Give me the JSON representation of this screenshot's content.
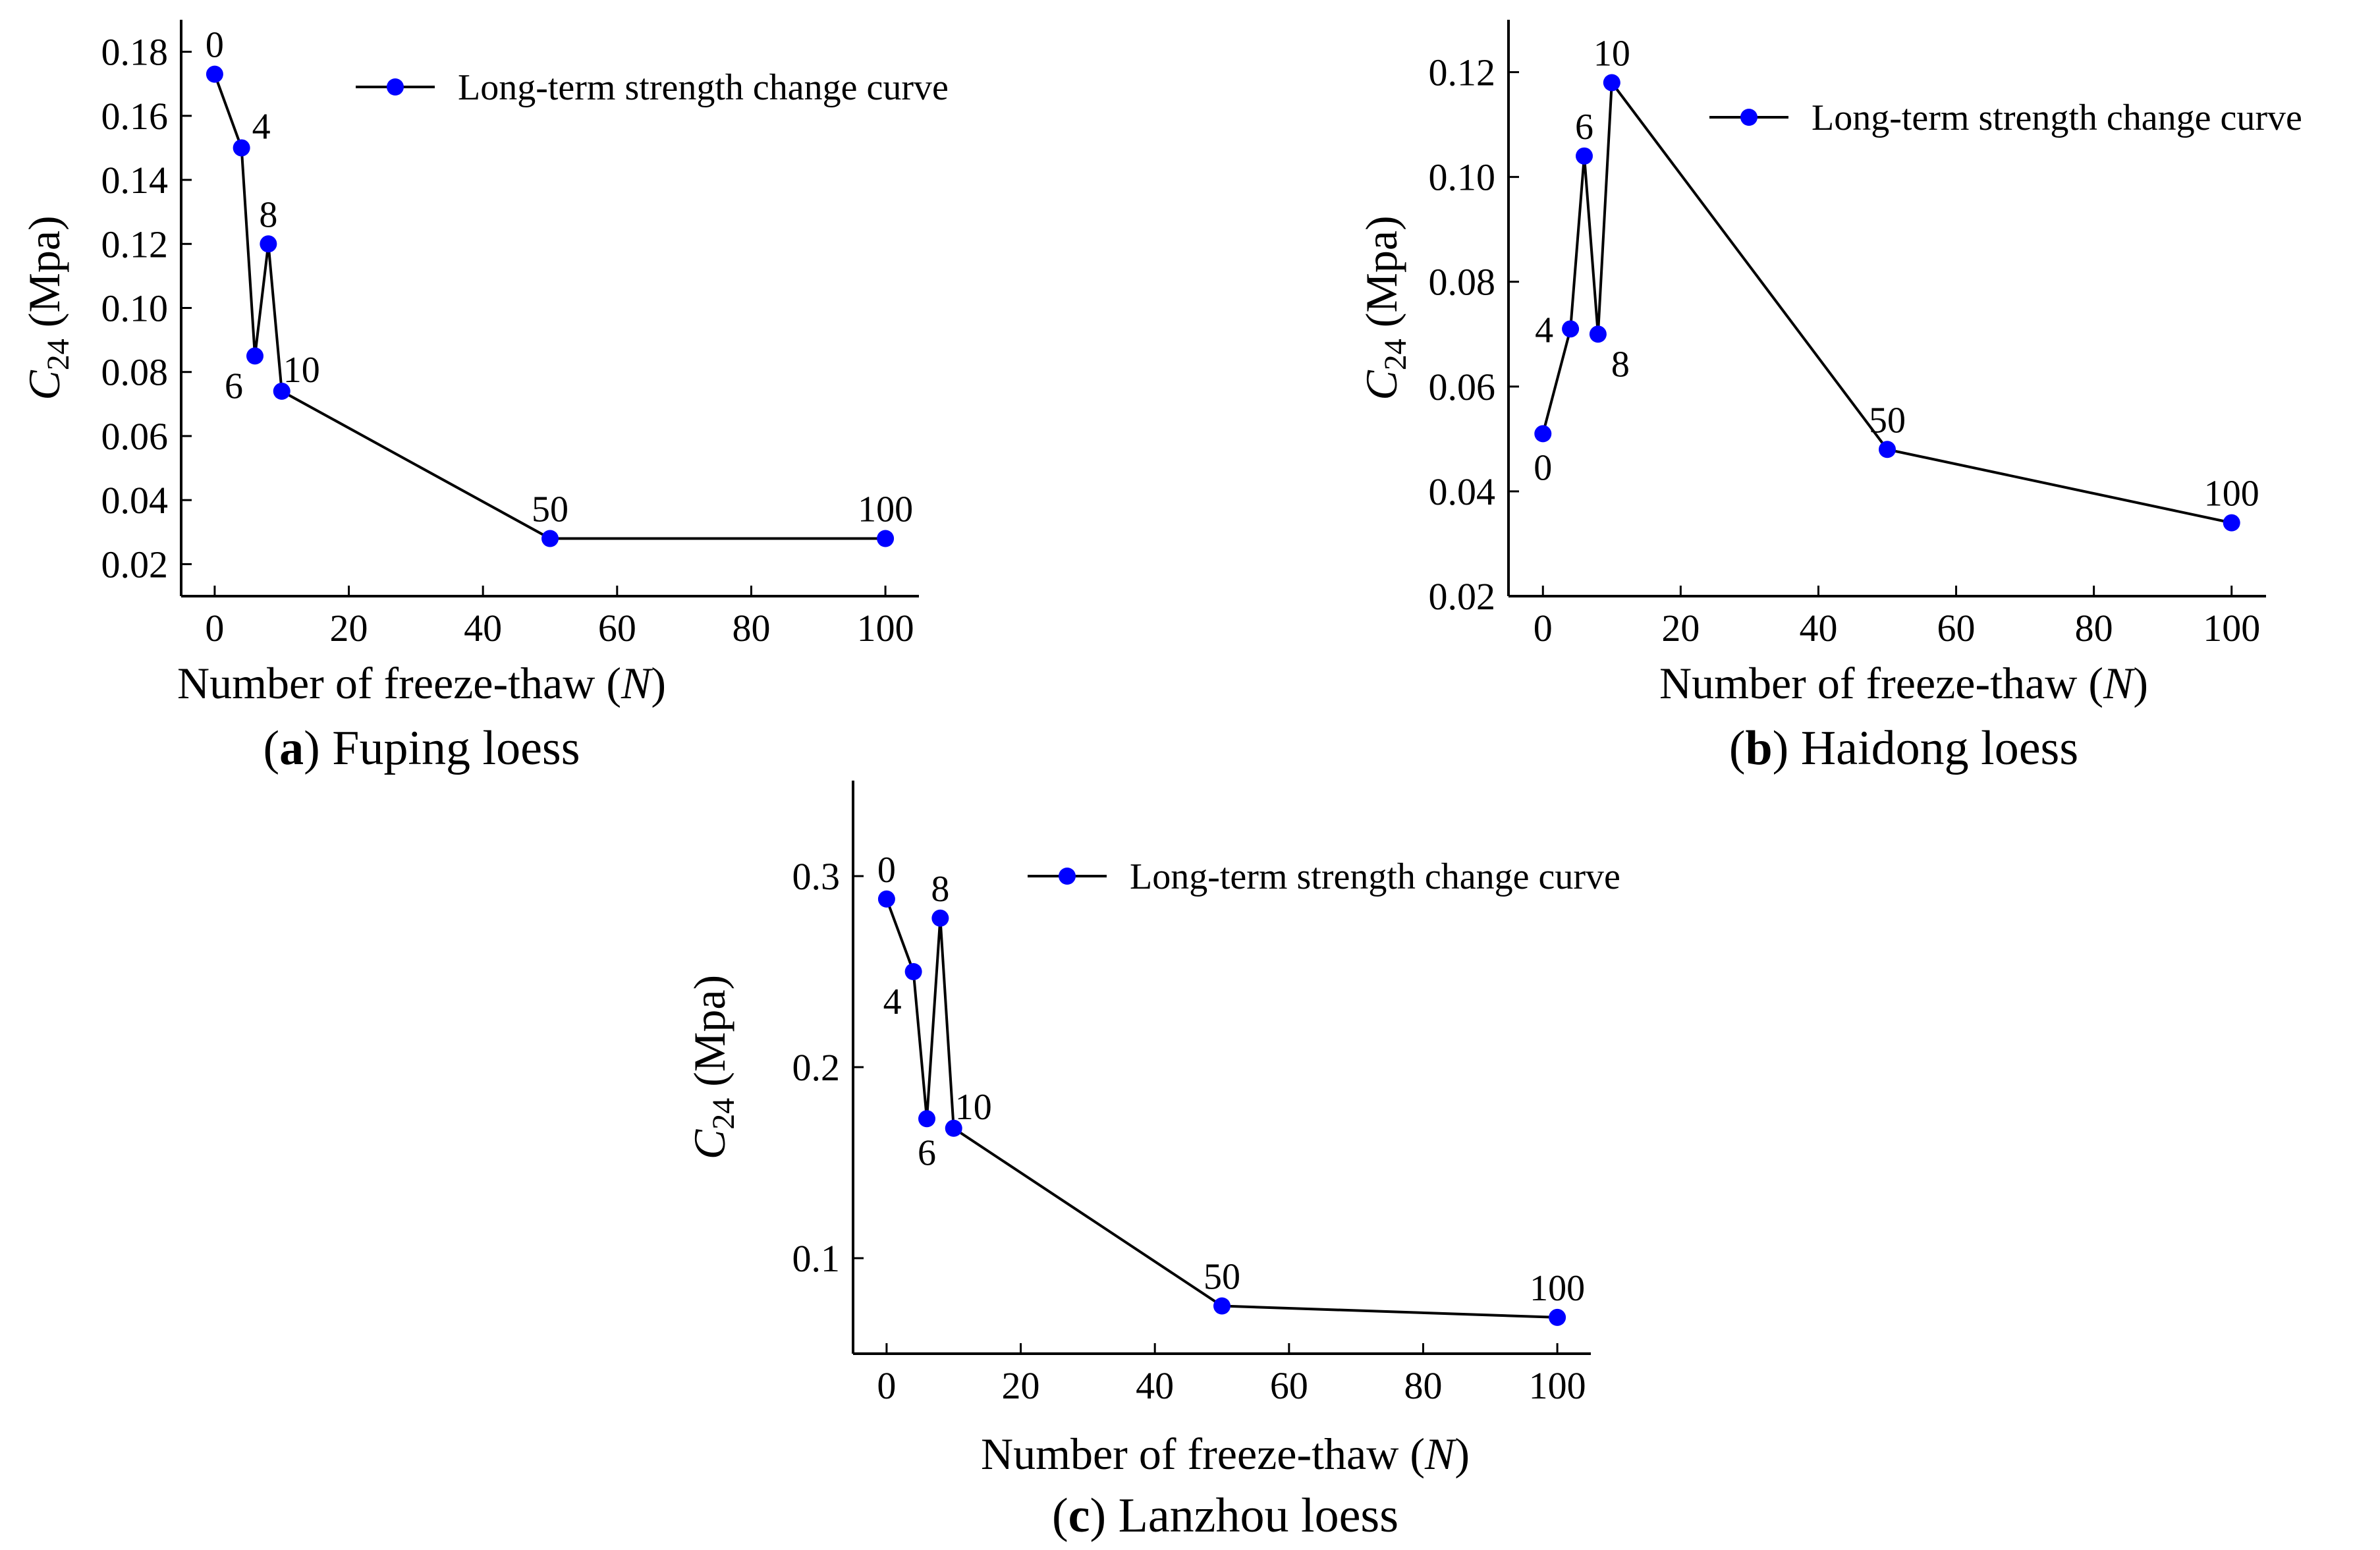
{
  "figure": {
    "colors": {
      "marker": "#0000ff",
      "line": "#000000",
      "axis": "#000000",
      "text": "#000000",
      "background": "#ffffff"
    }
  },
  "chart_data": [
    {
      "id": "a",
      "type": "line",
      "caption_letter": "a",
      "caption_rest": " Fuping loess",
      "xlabel_main": "Number of freeze-thaw (",
      "xlabel_var": "N",
      "xlabel_end": ")",
      "ylabel_var": "C",
      "ylabel_sub": "24",
      "ylabel_unit": " (Mpa)",
      "legend": "Long-term strength change curve",
      "legend_position": "top-right",
      "xlim": [
        -5,
        105
      ],
      "ylim": [
        0.01,
        0.19
      ],
      "xticks": [
        0,
        20,
        40,
        60,
        80,
        100
      ],
      "xtick_labels": [
        "0",
        "20",
        "40",
        "60",
        "80",
        "100"
      ],
      "yticks": [
        0.02,
        0.04,
        0.06,
        0.08,
        0.1,
        0.12,
        0.14,
        0.16,
        0.18
      ],
      "ytick_labels": [
        "0.02",
        "0.04",
        "0.06",
        "0.08",
        "0.10",
        "0.12",
        "0.14",
        "0.16",
        "0.18"
      ],
      "x": [
        0,
        4,
        6,
        8,
        10,
        50,
        100
      ],
      "y": [
        0.173,
        0.15,
        0.085,
        0.12,
        0.074,
        0.028,
        0.028
      ],
      "point_labels": [
        "0",
        "4",
        "6",
        "8",
        "10",
        "50",
        "100"
      ],
      "label_placement": [
        "above",
        "above-right",
        "below-left",
        "above",
        "above-right",
        "above",
        "above"
      ]
    },
    {
      "id": "b",
      "type": "line",
      "caption_letter": "b",
      "caption_rest": " Haidong loess",
      "xlabel_main": "Number of freeze-thaw (",
      "xlabel_var": "N",
      "xlabel_end": ")",
      "ylabel_var": "C",
      "ylabel_sub": "24",
      "ylabel_unit": " (Mpa)",
      "legend": "Long-term strength change curve",
      "legend_position": "top-right",
      "xlim": [
        -5,
        105
      ],
      "ylim": [
        0.02,
        0.13
      ],
      "xticks": [
        0,
        20,
        40,
        60,
        80,
        100
      ],
      "xtick_labels": [
        "0",
        "20",
        "40",
        "60",
        "80",
        "100"
      ],
      "yticks": [
        0.02,
        0.04,
        0.06,
        0.08,
        0.1,
        0.12
      ],
      "ytick_labels": [
        "0.02",
        "0.04",
        "0.06",
        "0.08",
        "0.10",
        "0.12"
      ],
      "x": [
        0,
        4,
        6,
        8,
        10,
        50,
        100
      ],
      "y": [
        0.051,
        0.071,
        0.104,
        0.07,
        0.118,
        0.048,
        0.034
      ],
      "point_labels": [
        "0",
        "4",
        "6",
        "8",
        "10",
        "50",
        "100"
      ],
      "label_placement": [
        "below",
        "left",
        "above",
        "below-right",
        "above",
        "above",
        "above"
      ]
    },
    {
      "id": "c",
      "type": "line",
      "caption_letter": "c",
      "caption_rest": " Lanzhou loess",
      "xlabel_main": "Number of freeze-thaw (",
      "xlabel_var": "N",
      "xlabel_end": ")",
      "ylabel_var": "C",
      "ylabel_sub": "24",
      "ylabel_unit": " (Mpa)",
      "legend": "Long-term strength change curve",
      "legend_position": "top-right",
      "xlim": [
        -5,
        105
      ],
      "ylim": [
        0.05,
        0.35
      ],
      "xticks": [
        0,
        20,
        40,
        60,
        80,
        100
      ],
      "xtick_labels": [
        "0",
        "20",
        "40",
        "60",
        "80",
        "100"
      ],
      "yticks": [
        0.1,
        0.2,
        0.3
      ],
      "ytick_labels": [
        "0.1",
        "0.2",
        "0.3"
      ],
      "x": [
        0,
        4,
        6,
        8,
        10,
        50,
        100
      ],
      "y": [
        0.288,
        0.25,
        0.173,
        0.278,
        0.168,
        0.075,
        0.069
      ],
      "point_labels": [
        "0",
        "4",
        "6",
        "8",
        "10",
        "50",
        "100"
      ],
      "label_placement": [
        "above",
        "below-left",
        "below",
        "above",
        "above-right",
        "above",
        "above"
      ]
    }
  ]
}
